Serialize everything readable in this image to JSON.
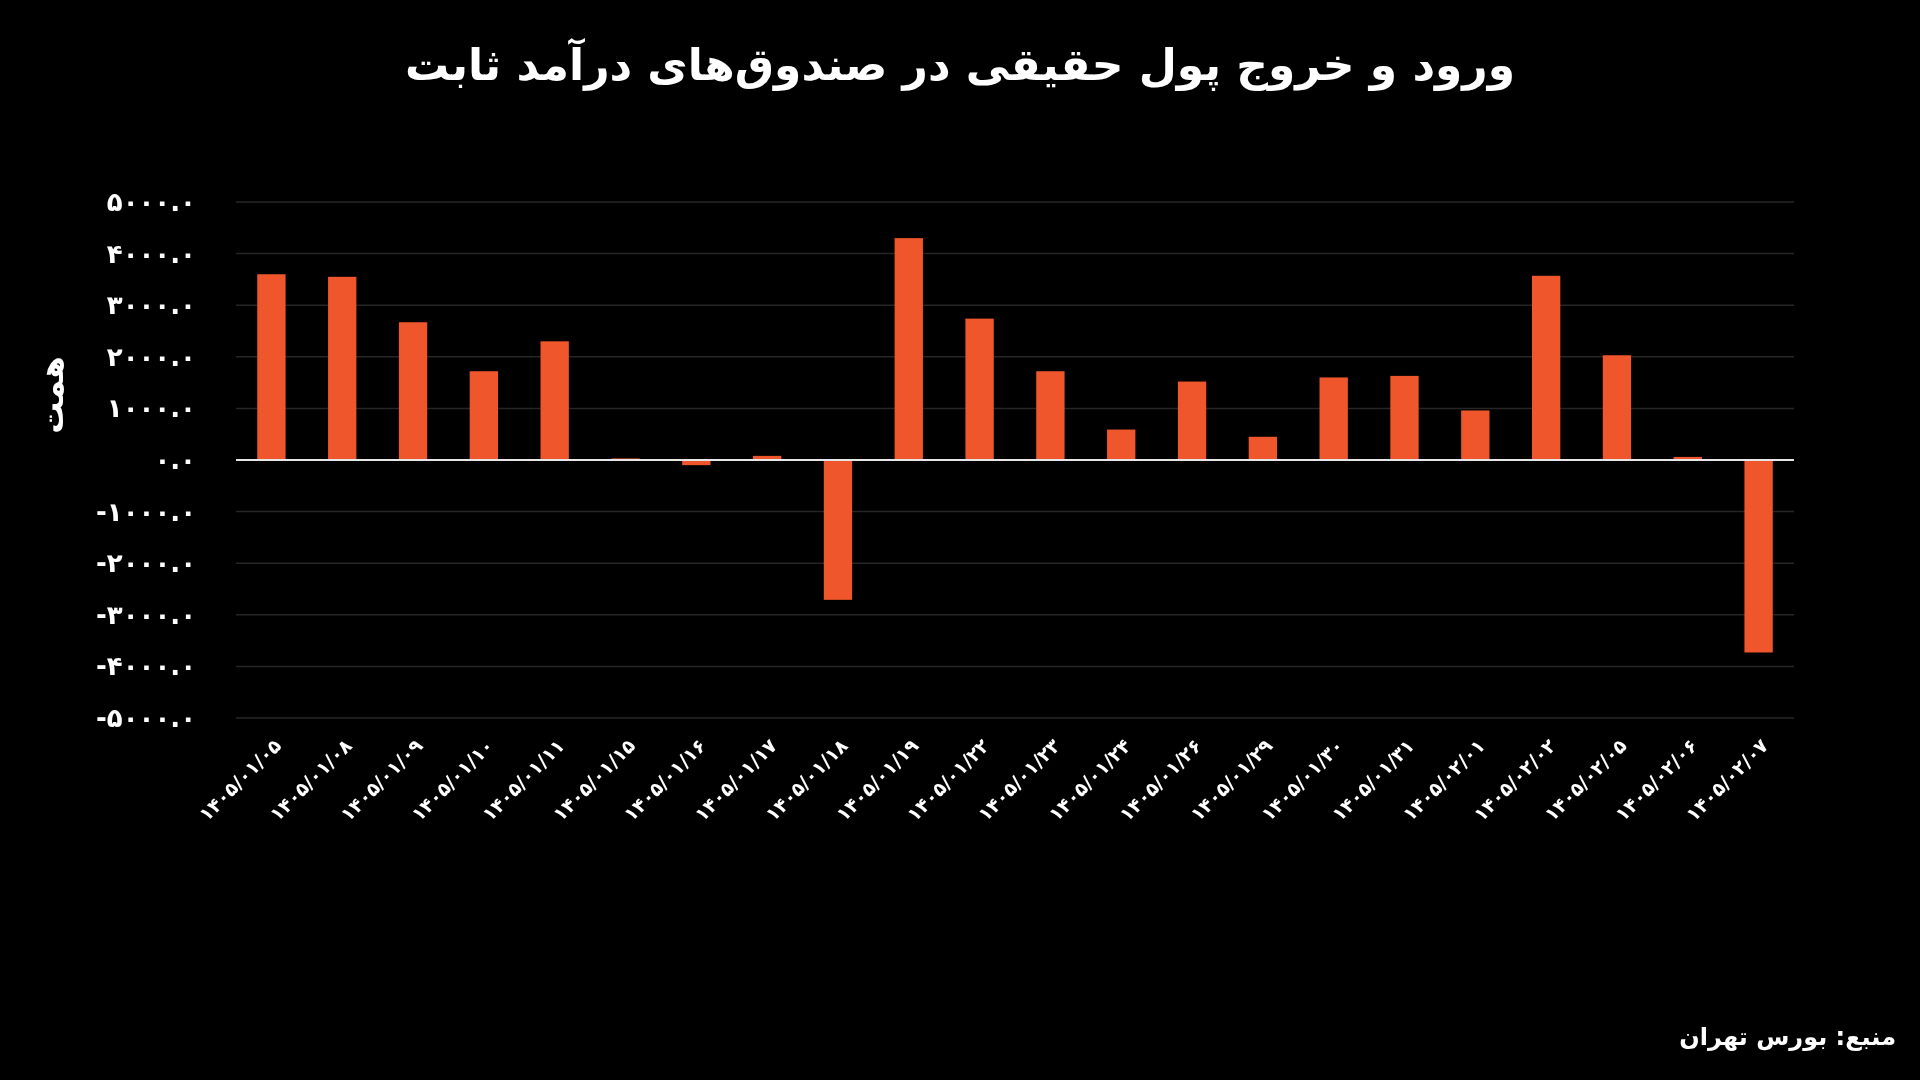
{
  "chart_data": {
    "type": "bar",
    "title": "ورود و خروج پول حقیقی در صندوق‌های درآمد ثابت",
    "ylabel": "همت",
    "categories": [
      "۱۴۰۵/۰۱/۰۵",
      "۱۴۰۵/۰۱/۰۸",
      "۱۴۰۵/۰۱/۰۹",
      "۱۴۰۵/۰۱/۱۰",
      "۱۴۰۵/۰۱/۱۱",
      "۱۴۰۵/۰۱/۱۵",
      "۱۴۰۵/۰۱/۱۶",
      "۱۴۰۵/۰۱/۱۷",
      "۱۴۰۵/۰۱/۱۸",
      "۱۴۰۵/۰۱/۱۹",
      "۱۴۰۵/۰۱/۲۲",
      "۱۴۰۵/۰۱/۲۳",
      "۱۴۰۵/۰۱/۲۴",
      "۱۴۰۵/۰۱/۲۶",
      "۱۴۰۵/۰۱/۲۹",
      "۱۴۰۵/۰۱/۳۰",
      "۱۴۰۵/۰۱/۳۱",
      "۱۴۰۵/۰۲/۰۱",
      "۱۴۰۵/۰۲/۰۲",
      "۱۴۰۵/۰۲/۰۵",
      "۱۴۰۵/۰۲/۰۶",
      "۱۴۰۵/۰۲/۰۷"
    ],
    "values": [
      3600,
      3550,
      2670,
      1720,
      2300,
      30,
      -100,
      80,
      -2710,
      4300,
      2740,
      1720,
      590,
      1520,
      450,
      1600,
      1630,
      960,
      3570,
      2030,
      60,
      -3730
    ],
    "color": "#f0562b",
    "ylim": [
      -5000,
      5000
    ],
    "yticks": [
      {
        "value": 5000,
        "label": "۵۰۰۰.۰"
      },
      {
        "value": 4000,
        "label": "۴۰۰۰.۰"
      },
      {
        "value": 3000,
        "label": "۳۰۰۰.۰"
      },
      {
        "value": 2000,
        "label": "۲۰۰۰.۰"
      },
      {
        "value": 1000,
        "label": "۱۰۰۰.۰"
      },
      {
        "value": 0,
        "label": "۰.۰"
      },
      {
        "value": -1000,
        "label": "-۱۰۰۰.۰"
      },
      {
        "value": -2000,
        "label": "-۲۰۰۰.۰"
      },
      {
        "value": -3000,
        "label": "-۳۰۰۰.۰"
      },
      {
        "value": -4000,
        "label": "-۴۰۰۰.۰"
      },
      {
        "value": -5000,
        "label": "-۵۰۰۰.۰"
      }
    ],
    "grid": "y",
    "annotations": [
      "منبع: بورس تهران"
    ]
  }
}
